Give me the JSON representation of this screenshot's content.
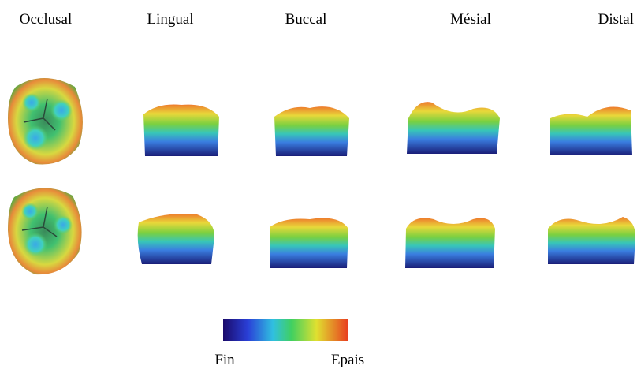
{
  "columns": [
    "Occlusal",
    "Lingual",
    "Buccal",
    "Mésial",
    "Distal"
  ],
  "legend": {
    "min_label": "Fin",
    "max_label": "Epais"
  }
}
